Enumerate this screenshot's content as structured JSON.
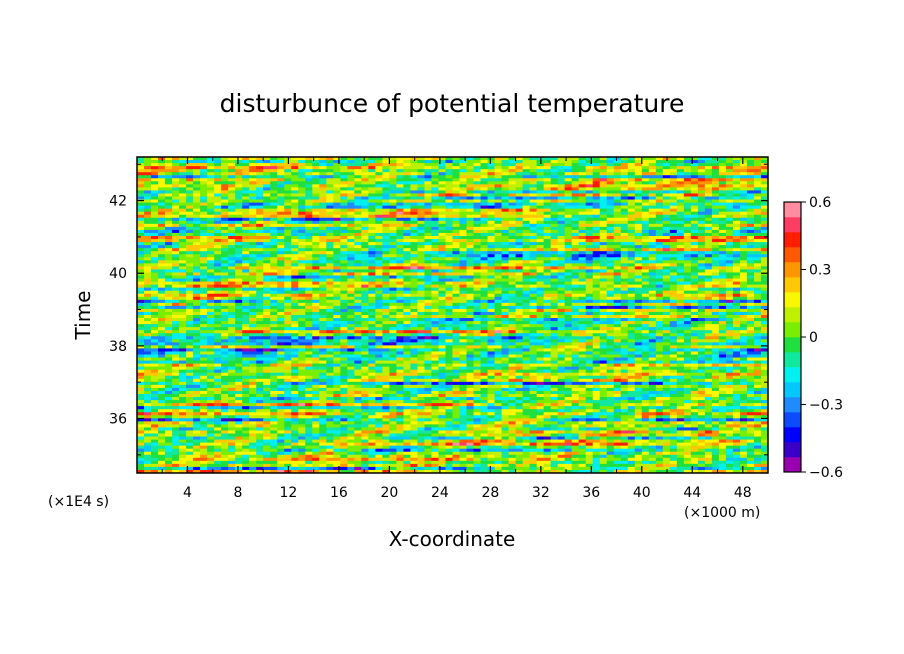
{
  "chart_data": {
    "type": "heatmap",
    "title": "disturbunce of potential temperature",
    "xlabel": "X-coordinate",
    "ylabel": "Time",
    "x_unit": "(×1000 m)",
    "y_unit": "(×1E4 s)",
    "xlim": [
      0,
      50
    ],
    "ylim": [
      34.5,
      43.2
    ],
    "x_ticks": [
      4,
      8,
      12,
      16,
      20,
      24,
      28,
      32,
      36,
      40,
      44,
      48
    ],
    "x_tick_labels": [
      "4",
      "8",
      "12",
      "16",
      "20",
      "24",
      "28",
      "32",
      "36",
      "40",
      "44",
      "48"
    ],
    "y_ticks": [
      36,
      38,
      40,
      42
    ],
    "y_tick_labels": [
      "36",
      "38",
      "40",
      "42"
    ],
    "colorbar": {
      "range": [
        -0.6,
        0.6
      ],
      "ticks": [
        -0.6,
        -0.3,
        0,
        0.3,
        0.6
      ],
      "tick_labels": [
        "−0.6",
        "−0.3",
        "0",
        "0.3",
        "0.6"
      ],
      "colors": [
        "#9a00b0",
        "#3a00c8",
        "#0000ff",
        "#0b4cff",
        "#1e8cff",
        "#00c8ff",
        "#00f0f0",
        "#10e8a0",
        "#20e040",
        "#78ee00",
        "#bef000",
        "#f8f800",
        "#ffc800",
        "#ff9600",
        "#ff5a00",
        "#ff1e00",
        "#ff3c64",
        "#ff8ca0"
      ]
    },
    "grid": false,
    "legend": "colorbar-right"
  }
}
